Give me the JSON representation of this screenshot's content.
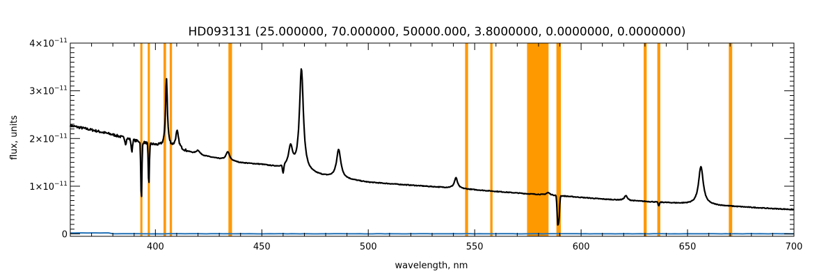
{
  "chart_data": {
    "type": "line",
    "title": "HD093131    (25.000000, 70.000000, 50000.000, 3.8000000, 0.0000000, 0.0000000)",
    "xlabel": "wavelength, nm",
    "ylabel": "flux, units",
    "xlim": [
      360,
      700
    ],
    "ylim": [
      -5e-13,
      4e-11
    ],
    "grid": false,
    "x_ticks": [
      {
        "value": 400,
        "label": "400"
      },
      {
        "value": 450,
        "label": "450"
      },
      {
        "value": 500,
        "label": "500"
      },
      {
        "value": 550,
        "label": "550"
      },
      {
        "value": 600,
        "label": "600"
      },
      {
        "value": 650,
        "label": "650"
      },
      {
        "value": 700,
        "label": "700"
      }
    ],
    "y_ticks": [
      {
        "value": 0,
        "mantissa": "0",
        "exponent": ""
      },
      {
        "value": 1e-11,
        "mantissa": "1×10",
        "exponent": "−11"
      },
      {
        "value": 2e-11,
        "mantissa": "2×10",
        "exponent": "−11"
      },
      {
        "value": 3e-11,
        "mantissa": "3×10",
        "exponent": "−11"
      },
      {
        "value": 4e-11,
        "mantissa": "4×10",
        "exponent": "−11"
      }
    ],
    "masked_bands": [
      [
        392.9,
        393.9
      ],
      [
        396.4,
        397.4
      ],
      [
        403.8,
        405.0
      ],
      [
        406.7,
        407.8
      ],
      [
        434.3,
        436.0
      ],
      [
        545.5,
        546.9
      ],
      [
        557.3,
        558.4
      ],
      [
        574.6,
        584.7
      ],
      [
        588.4,
        590.5
      ],
      [
        629.4,
        630.8
      ],
      [
        635.8,
        637.2
      ],
      [
        669.4,
        671.0
      ]
    ],
    "series": [
      {
        "color": "#000000",
        "continuum": [
          [
            360,
            2.27e-11
          ],
          [
            370,
            2.18e-11
          ],
          [
            380,
            2.08e-11
          ],
          [
            390,
            1.96e-11
          ],
          [
            400,
            1.86e-11
          ],
          [
            410,
            1.79e-11
          ],
          [
            420,
            1.66e-11
          ],
          [
            430,
            1.57e-11
          ],
          [
            440,
            1.49e-11
          ],
          [
            450,
            1.45e-11
          ],
          [
            460,
            1.37e-11
          ],
          [
            470,
            1.28e-11
          ],
          [
            480,
            1.2e-11
          ],
          [
            490,
            1.14e-11
          ],
          [
            500,
            1.08e-11
          ],
          [
            520,
            1.02e-11
          ],
          [
            540,
            9.6e-12
          ],
          [
            560,
            8.9e-12
          ],
          [
            575,
            8.4e-12
          ],
          [
            590,
            8e-12
          ],
          [
            610,
            7.3e-12
          ],
          [
            630,
            6.8e-12
          ],
          [
            650,
            6.3e-12
          ],
          [
            670,
            5.8e-12
          ],
          [
            690,
            5.3e-12
          ],
          [
            700,
            5.1e-12
          ]
        ],
        "emission_lines": [
          {
            "x": 405.2,
            "peak": 1.45e-11,
            "width": 0.5
          },
          {
            "x": 410.2,
            "peak": 3.5e-12,
            "width": 0.8
          },
          {
            "x": 420.0,
            "peak": 9e-13,
            "width": 1.0
          },
          {
            "x": 434.0,
            "peak": 1.8e-12,
            "width": 1.0
          },
          {
            "x": 463.5,
            "peak": 4.5e-12,
            "width": 1.2
          },
          {
            "x": 468.6,
            "peak": 2.15e-11,
            "width": 1.1
          },
          {
            "x": 486.1,
            "peak": 6e-12,
            "width": 1.2
          },
          {
            "x": 541.2,
            "peak": 2.2e-12,
            "width": 0.9
          },
          {
            "x": 584.5,
            "peak": 5e-13,
            "width": 1.0
          },
          {
            "x": 621.0,
            "peak": 1e-12,
            "width": 0.8
          },
          {
            "x": 656.3,
            "peak": 8e-12,
            "width": 1.3
          }
        ],
        "absorption_lines": [
          {
            "x": 393.4,
            "depth": 1.25e-11,
            "width": 0.25
          },
          {
            "x": 396.9,
            "depth": 9e-12,
            "width": 0.25
          },
          {
            "x": 386.0,
            "depth": 1.2e-12,
            "width": 0.3
          },
          {
            "x": 388.9,
            "depth": 2.5e-12,
            "width": 0.3
          },
          {
            "x": 460.0,
            "depth": 1.8e-12,
            "width": 0.3
          },
          {
            "x": 589.0,
            "depth": 5.5e-12,
            "width": 0.3
          },
          {
            "x": 589.6,
            "depth": 4.5e-12,
            "width": 0.3
          },
          {
            "x": 636.5,
            "depth": 8e-13,
            "width": 0.3
          }
        ]
      },
      {
        "color": "#1f6fb4",
        "level": 0.0
      }
    ]
  }
}
